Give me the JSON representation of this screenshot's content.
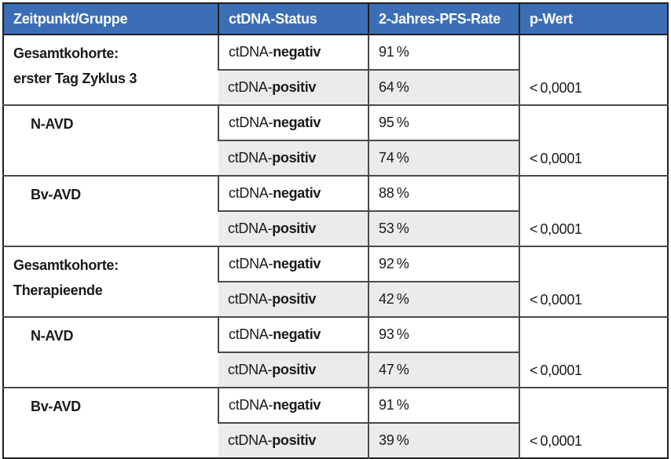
{
  "table": {
    "title_semantic": "2-Jahres-PFS-Rate nach ctDNA-Status",
    "headers": [
      "Zeitpunkt/Gruppe",
      "ctDNA-Status",
      "2-Jahres-PFS-Rate",
      "p-Wert"
    ],
    "status_prefix": "ctDNA-",
    "groups": [
      {
        "label": "Gesamtkohorte:\nerster Tag Zyklus 3",
        "rows": [
          {
            "status": "negativ",
            "rate": "91 %"
          },
          {
            "status": "positiv",
            "rate": "64 %"
          }
        ],
        "p_value": "< 0,0001"
      },
      {
        "label": "N-AVD",
        "rows": [
          {
            "status": "negativ",
            "rate": "95 %"
          },
          {
            "status": "positiv",
            "rate": "74 %"
          }
        ],
        "p_value": "< 0,0001"
      },
      {
        "label": "Bv-AVD",
        "rows": [
          {
            "status": "negativ",
            "rate": "88 %"
          },
          {
            "status": "positiv",
            "rate": "53 %"
          }
        ],
        "p_value": "< 0,0001"
      },
      {
        "label": "Gesamtkohorte:\nTherapieende",
        "rows": [
          {
            "status": "negativ",
            "rate": "92 %"
          },
          {
            "status": "positiv",
            "rate": "42 %"
          }
        ],
        "p_value": "< 0,0001"
      },
      {
        "label": "N-AVD",
        "rows": [
          {
            "status": "negativ",
            "rate": "93 %"
          },
          {
            "status": "positiv",
            "rate": "47 %"
          }
        ],
        "p_value": "< 0,0001"
      },
      {
        "label": "Bv-AVD",
        "rows": [
          {
            "status": "negativ",
            "rate": "91 %"
          },
          {
            "status": "positiv",
            "rate": "39 %"
          }
        ],
        "p_value": "< 0,0001"
      }
    ],
    "colors": {
      "header_bg": "#3C6EB5",
      "header_text": "#FFFFFF",
      "shaded_row": "#EBEBEB",
      "border_dark": "#1F1F1F",
      "border_inner": "#4A4A4A"
    }
  }
}
